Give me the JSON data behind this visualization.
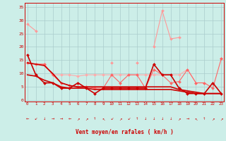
{
  "background_color": "#cceee8",
  "grid_color": "#aacccc",
  "xlabel": "Vent moyen/en rafales ( km/h )",
  "yticks": [
    0,
    5,
    10,
    15,
    20,
    25,
    30,
    35
  ],
  "ylim": [
    -0.5,
    36.5
  ],
  "xlim": [
    -0.3,
    23.3
  ],
  "series": [
    {
      "comment": "light pink top curve - sparse points connected",
      "color": "#ff9999",
      "linewidth": 0.8,
      "marker": "D",
      "markersize": 2.0,
      "values": [
        28.5,
        26.0,
        null,
        null,
        null,
        null,
        null,
        null,
        null,
        null,
        14.0,
        null,
        null,
        14.0,
        null,
        20.0,
        33.5,
        23.0,
        23.5,
        null,
        null,
        null,
        null,
        15.5
      ]
    },
    {
      "comment": "light pink middle curve - relatively flat around 9-14",
      "color": "#ffaaaa",
      "linewidth": 0.8,
      "marker": "D",
      "markersize": 2.0,
      "values": [
        14.0,
        13.5,
        13.5,
        9.5,
        9.5,
        9.5,
        9.0,
        9.5,
        9.5,
        9.5,
        9.5,
        9.5,
        9.5,
        9.5,
        9.5,
        9.5,
        9.5,
        9.5,
        9.5,
        11.5,
        6.5,
        6.5,
        null,
        15.5
      ]
    },
    {
      "comment": "medium red curve with markers - lower band",
      "color": "#ff6666",
      "linewidth": 0.8,
      "marker": "D",
      "markersize": 2.0,
      "values": [
        14.0,
        13.5,
        13.5,
        9.5,
        6.5,
        5.5,
        5.0,
        5.0,
        4.5,
        4.5,
        9.5,
        6.5,
        9.5,
        9.5,
        4.5,
        11.5,
        9.5,
        6.5,
        7.0,
        11.5,
        6.5,
        6.5,
        4.5,
        15.5
      ]
    },
    {
      "comment": "dark red with markers - spiky lower line",
      "color": "#cc0000",
      "linewidth": 1.2,
      "marker": "D",
      "markersize": 2.0,
      "values": [
        17.0,
        9.5,
        6.5,
        6.5,
        4.5,
        4.5,
        6.5,
        4.5,
        2.5,
        4.5,
        4.5,
        4.5,
        4.5,
        4.5,
        4.5,
        13.5,
        9.5,
        9.5,
        4.5,
        2.5,
        2.5,
        2.5,
        6.5,
        2.5
      ]
    },
    {
      "comment": "dark red smooth upper envelope",
      "color": "#cc0000",
      "linewidth": 1.2,
      "marker": null,
      "markersize": 0,
      "values": [
        14.0,
        13.5,
        13.0,
        10.0,
        6.5,
        5.5,
        5.0,
        5.0,
        5.0,
        5.0,
        5.0,
        5.0,
        5.0,
        5.0,
        5.0,
        5.0,
        5.0,
        5.0,
        4.0,
        3.5,
        3.0,
        2.5,
        2.5,
        2.5
      ]
    },
    {
      "comment": "dark red smooth lower envelope",
      "color": "#cc0000",
      "linewidth": 1.2,
      "marker": null,
      "markersize": 0,
      "values": [
        9.5,
        9.0,
        7.5,
        6.5,
        5.0,
        4.5,
        4.5,
        4.5,
        4.0,
        4.0,
        4.0,
        4.0,
        4.0,
        4.0,
        4.0,
        4.0,
        4.0,
        4.0,
        3.5,
        3.0,
        2.5,
        2.5,
        2.5,
        2.5
      ]
    }
  ],
  "arrows": [
    "←",
    "↙",
    "↓",
    "→",
    "→",
    "←",
    "↗",
    "↗",
    "↑",
    "↖",
    "↙",
    "↗",
    "↙",
    "↑",
    "↓",
    "↓",
    "↓",
    "↓",
    "↗",
    "→",
    "↖",
    "↑",
    "↗",
    "↗"
  ],
  "arrow_color": "#cc0000",
  "tick_color": "#cc0000",
  "label_color": "#cc0000",
  "spine_color": "#cc0000"
}
